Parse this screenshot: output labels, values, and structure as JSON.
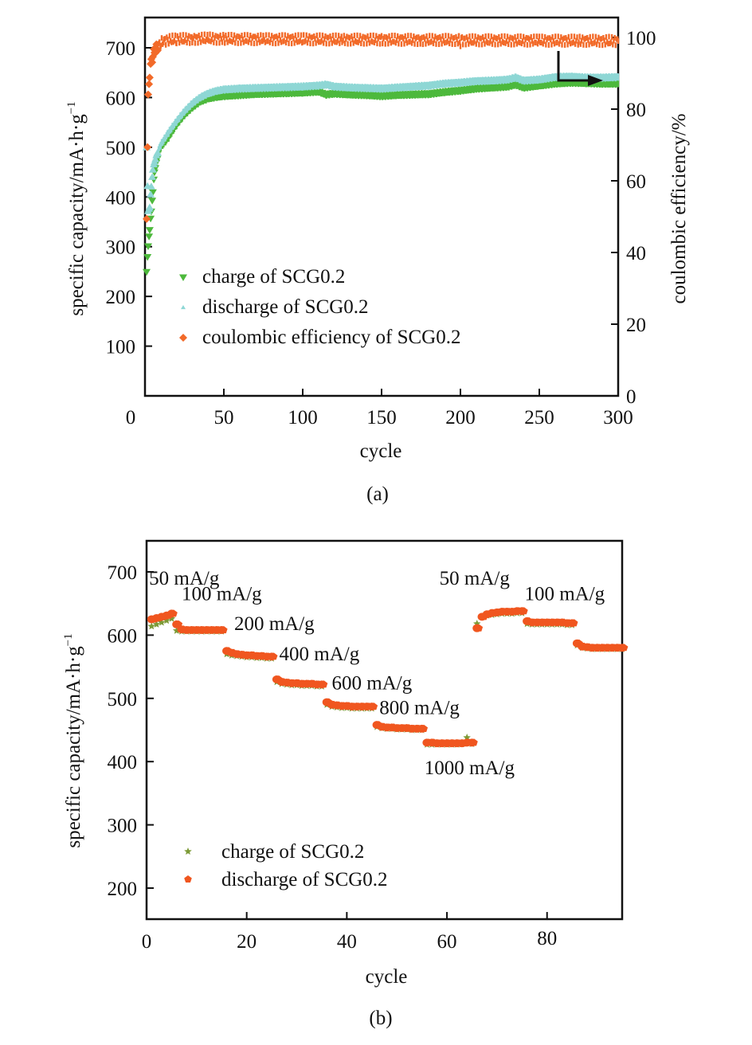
{
  "chart_data": [
    {
      "type": "scatter",
      "panel_label": "(a)",
      "title": "",
      "xlabel": "cycle",
      "ylabel": "specific capacity/mA·h·g",
      "ylabel_sup": "−1",
      "y2label": "coulombic efficiency/%",
      "xlim": [
        0,
        300
      ],
      "ylim": [
        0,
        750
      ],
      "y2lim": [
        0,
        105
      ],
      "x_ticks": [
        0,
        50,
        100,
        150,
        200,
        250,
        300
      ],
      "y_ticks": [
        100,
        200,
        300,
        400,
        500,
        600,
        700
      ],
      "y2_ticks": [
        0,
        20,
        40,
        60,
        80,
        100
      ],
      "grid": false,
      "legend_position": "bottom-left",
      "annotation": "arrow pointing to right axis (capacity curves near right axis)",
      "series": [
        {
          "name": "charge of SCG0.2",
          "marker": "triangle-down",
          "color": "#4DB93C",
          "axis": "left",
          "x": [
            1,
            2,
            3,
            4,
            5,
            6,
            8,
            10,
            15,
            20,
            25,
            30,
            35,
            40,
            45,
            50,
            60,
            70,
            80,
            90,
            100,
            110,
            115,
            120,
            130,
            140,
            150,
            160,
            170,
            180,
            190,
            200,
            210,
            220,
            230,
            235,
            240,
            250,
            260,
            270,
            280,
            290,
            300
          ],
          "y": [
            250,
            300,
            335,
            370,
            410,
            450,
            480,
            500,
            520,
            545,
            565,
            580,
            592,
            598,
            601,
            603,
            605,
            607,
            608,
            609,
            610,
            612,
            606,
            608,
            606,
            605,
            603,
            605,
            606,
            607,
            611,
            614,
            618,
            620,
            622,
            626,
            620,
            624,
            628,
            630,
            629,
            628,
            628
          ]
        },
        {
          "name": "discharge of SCG0.2",
          "marker": "triangle-up",
          "color": "#8ED7D5",
          "axis": "left",
          "x": [
            1,
            2,
            3,
            4,
            5,
            6,
            8,
            10,
            15,
            20,
            25,
            30,
            35,
            40,
            45,
            50,
            60,
            70,
            80,
            90,
            100,
            110,
            115,
            120,
            130,
            140,
            150,
            160,
            170,
            180,
            190,
            200,
            210,
            220,
            230,
            235,
            240,
            250,
            260,
            270,
            280,
            290,
            300
          ],
          "y": [
            500,
            370,
            380,
            420,
            455,
            470,
            490,
            505,
            530,
            552,
            572,
            588,
            600,
            608,
            613,
            616,
            618,
            619,
            620,
            621,
            622,
            624,
            626,
            622,
            620,
            619,
            618,
            620,
            622,
            624,
            628,
            630,
            633,
            634,
            636,
            640,
            634,
            636,
            641,
            642,
            640,
            640,
            641
          ]
        },
        {
          "name": "coulombic efficiency of SCG0.2",
          "marker": "diamond",
          "color": "#F26A29",
          "axis": "right",
          "x": [
            1,
            2,
            3,
            4,
            5,
            6,
            8,
            10,
            12,
            15,
            20,
            30,
            40,
            50,
            75,
            100,
            125,
            150,
            175,
            199,
            200,
            201,
            225,
            250,
            275,
            300
          ],
          "y": [
            50,
            83,
            90,
            93,
            95,
            96,
            97.5,
            98.5,
            99,
            99.3,
            99.5,
            99.6,
            99.7,
            99.6,
            99.5,
            99.5,
            99.4,
            99.4,
            99.3,
            99.3,
            98.7,
            99.2,
            99.2,
            99.1,
            99.1,
            99.0
          ]
        }
      ]
    },
    {
      "type": "scatter",
      "panel_label": "(b)",
      "title": "",
      "xlabel": "cycle",
      "ylabel": "specific capacity/mA·h·g",
      "ylabel_sup": "−1",
      "xlim": [
        0,
        95
      ],
      "ylim": [
        150,
        750
      ],
      "x_ticks": [
        0,
        20,
        40,
        60,
        80
      ],
      "y_ticks": [
        200,
        300,
        400,
        500,
        600,
        700
      ],
      "grid": false,
      "legend_position": "bottom-left",
      "annotations": [
        {
          "text": "50 mA/g",
          "x": 0.5,
          "y": 680
        },
        {
          "text": "100 mA/g",
          "x": 7,
          "y": 655
        },
        {
          "text": "200 mA/g",
          "x": 17.5,
          "y": 608
        },
        {
          "text": "400 mA/g",
          "x": 26.5,
          "y": 560
        },
        {
          "text": "600 mA/g",
          "x": 37,
          "y": 514
        },
        {
          "text": "800 mA/g",
          "x": 46.5,
          "y": 475
        },
        {
          "text": "1000 mA/g",
          "x": 55.5,
          "y": 380
        },
        {
          "text": "50 mA/g",
          "x": 58.5,
          "y": 680
        },
        {
          "text": "100 mA/g",
          "x": 75.5,
          "y": 655
        }
      ],
      "series": [
        {
          "name": "charge of SCG0.2",
          "marker": "star",
          "color": "#7C9A36",
          "x": [
            1,
            2,
            3,
            4,
            5,
            6,
            7,
            8,
            9,
            10,
            11,
            12,
            13,
            14,
            15,
            16,
            17,
            18,
            19,
            20,
            21,
            22,
            23,
            24,
            25,
            26,
            27,
            28,
            29,
            30,
            31,
            32,
            33,
            34,
            35,
            36,
            37,
            38,
            39,
            40,
            41,
            42,
            43,
            44,
            45,
            46,
            47,
            48,
            49,
            50,
            51,
            52,
            53,
            54,
            55,
            56,
            57,
            58,
            59,
            60,
            61,
            62,
            63,
            64,
            65,
            66,
            67,
            68,
            69,
            70,
            71,
            72,
            73,
            74,
            75,
            76,
            77,
            78,
            79,
            80,
            81,
            82,
            83,
            84,
            85,
            86,
            87,
            88,
            89,
            90,
            91,
            92,
            93,
            94,
            95
          ],
          "y": [
            614,
            617,
            620,
            623,
            626,
            607,
            606,
            606,
            606,
            606,
            606,
            606,
            606,
            606,
            606,
            570,
            568,
            567,
            566,
            565,
            565,
            564,
            564,
            563,
            563,
            526,
            523,
            522,
            521,
            521,
            520,
            520,
            520,
            519,
            519,
            490,
            487,
            486,
            485,
            485,
            484,
            484,
            484,
            484,
            484,
            455,
            453,
            452,
            452,
            451,
            451,
            451,
            450,
            450,
            450,
            427,
            427,
            427,
            427,
            427,
            427,
            427,
            428,
            438,
            428,
            618,
            629,
            631,
            632,
            633,
            634,
            634,
            634,
            635,
            635,
            618,
            617,
            617,
            617,
            617,
            617,
            617,
            617,
            616,
            616,
            584,
            580,
            579,
            578,
            578,
            578,
            578,
            578,
            578,
            578
          ]
        },
        {
          "name": "discharge of SCG0.2",
          "marker": "pentagon",
          "color": "#F0561F",
          "x": [
            1,
            2,
            3,
            4,
            5,
            6,
            7,
            8,
            9,
            10,
            11,
            12,
            13,
            14,
            15,
            16,
            17,
            18,
            19,
            20,
            21,
            22,
            23,
            24,
            25,
            26,
            27,
            28,
            29,
            30,
            31,
            32,
            33,
            34,
            35,
            36,
            37,
            38,
            39,
            40,
            41,
            42,
            43,
            44,
            45,
            46,
            47,
            48,
            49,
            50,
            51,
            52,
            53,
            54,
            55,
            56,
            57,
            58,
            59,
            60,
            61,
            62,
            63,
            64,
            65,
            66,
            67,
            68,
            69,
            70,
            71,
            72,
            73,
            74,
            75,
            76,
            77,
            78,
            79,
            80,
            81,
            82,
            83,
            84,
            85,
            86,
            87,
            88,
            89,
            90,
            91,
            92,
            93,
            94,
            95
          ],
          "y": [
            625,
            627,
            629,
            631,
            634,
            617,
            609,
            608,
            608,
            608,
            608,
            608,
            608,
            608,
            608,
            575,
            572,
            570,
            569,
            568,
            568,
            567,
            567,
            566,
            566,
            530,
            526,
            525,
            524,
            524,
            523,
            523,
            523,
            522,
            522,
            494,
            490,
            489,
            488,
            488,
            487,
            487,
            487,
            487,
            487,
            458,
            455,
            454,
            454,
            453,
            453,
            453,
            452,
            452,
            452,
            430,
            430,
            429,
            429,
            429,
            429,
            429,
            429,
            430,
            430,
            611,
            629,
            633,
            635,
            636,
            637,
            637,
            637,
            638,
            638,
            622,
            620,
            620,
            620,
            620,
            620,
            620,
            620,
            619,
            619,
            587,
            582,
            581,
            580,
            580,
            580,
            580,
            580,
            580,
            580
          ]
        }
      ]
    }
  ]
}
